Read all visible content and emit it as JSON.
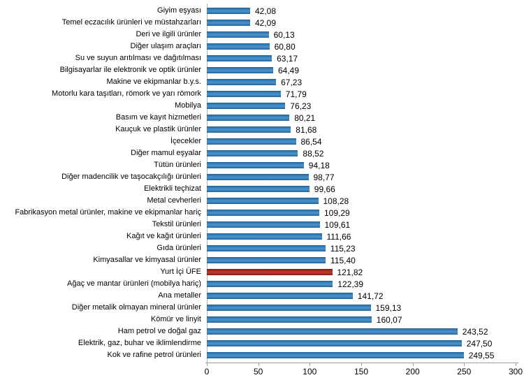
{
  "chart_data": {
    "type": "bar",
    "orientation": "horizontal",
    "title": "",
    "xlabel": "",
    "ylabel": "",
    "xlim": [
      0,
      300
    ],
    "xticks": [
      0,
      50,
      100,
      150,
      200,
      250,
      300
    ],
    "xtick_labels": [
      "0",
      "50",
      "100",
      "150",
      "200",
      "250",
      "300"
    ],
    "grid": false,
    "legend_position": "none",
    "highlight_category": "Yurt İçi ÜFE",
    "highlight_index": 22,
    "colors": {
      "bar": "#2F7BB6",
      "highlight_bar": "#A82A1D",
      "axis": "#9E9E9E",
      "text": "#000000",
      "background": "#FFFFFF"
    },
    "categories": [
      "Giyim eşyası",
      "Temel eczacılık ürünleri ve müstahzarları",
      "Deri ve ilgili ürünler",
      "Diğer ulaşım araçları",
      "Su ve suyun arıtılması ve dağıtılması",
      "Bilgisayarlar ile elektronik ve optik ürünler",
      "Makine ve ekipmanlar b.y.s.",
      "Motorlu kara taşıtları, römork ve yarı römork",
      "Mobilya",
      "Basım ve kayıt hizmetleri",
      "Kauçuk ve plastik ürünler",
      "İçecekler",
      "Diğer mamul eşyalar",
      "Tütün ürünleri",
      "Diğer madencilik ve taşocakçılığı ürünleri",
      "Elektrikli teçhizat",
      "Metal cevherleri",
      "Fabrikasyon metal ürünler, makine ve ekipmanlar hariç",
      "Tekstil ürünleri",
      "Kağıt ve kağıt ürünleri",
      "Gıda ürünleri",
      "Kimyasallar ve kimyasal ürünler",
      "Yurt İçi ÜFE",
      "Ağaç ve mantar ürünleri (mobilya hariç)",
      "Ana metaller",
      "Diğer metalik olmayan mineral ürünler",
      "Kömür ve linyit",
      "Ham petrol ve doğal gaz",
      "Elektrik, gaz, buhar ve iklimlendirme",
      "Kok ve rafine petrol ürünleri"
    ],
    "values": [
      42.08,
      42.09,
      60.13,
      60.8,
      63.17,
      64.49,
      67.23,
      71.79,
      76.23,
      80.21,
      81.68,
      86.54,
      88.52,
      94.18,
      98.77,
      99.66,
      108.28,
      109.29,
      109.61,
      111.66,
      115.23,
      115.4,
      121.82,
      122.39,
      141.72,
      159.13,
      160.07,
      243.52,
      247.5,
      249.55
    ],
    "value_labels": [
      "42,08",
      "42,09",
      "60,13",
      "60,80",
      "63,17",
      "64,49",
      "67,23",
      "71,79",
      "76,23",
      "80,21",
      "81,68",
      "86,54",
      "88,52",
      "94,18",
      "98,77",
      "99,66",
      "108,28",
      "109,29",
      "109,61",
      "111,66",
      "115,23",
      "115,40",
      "121,82",
      "122,39",
      "141,72",
      "159,13",
      "160,07",
      "243,52",
      "247,50",
      "249,55"
    ]
  }
}
